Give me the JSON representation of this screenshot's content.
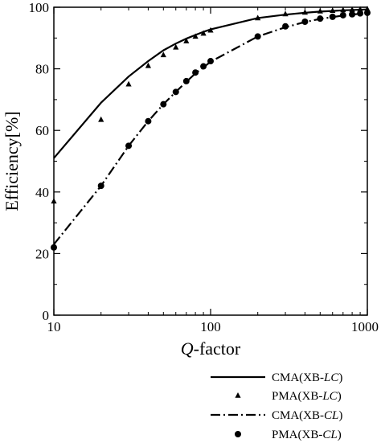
{
  "chart_data": {
    "type": "scatter",
    "xlabel_italic": "Q",
    "xlabel_rest": "-factor",
    "ylabel": "Efficiency[%]",
    "x_scale": "log",
    "xlim": [
      10,
      1000
    ],
    "ylim": [
      0,
      100
    ],
    "x_ticks": [
      10,
      100,
      1000
    ],
    "x_tick_labels": [
      "10",
      "100",
      "1000"
    ],
    "y_ticks": [
      0,
      20,
      40,
      60,
      80,
      100
    ],
    "y_tick_labels": [
      "0",
      "20",
      "40",
      "60",
      "80",
      "100"
    ],
    "grid": false,
    "legend_position": "below-right",
    "series": [
      {
        "legend_prefix": "CMA(XB-",
        "legend_italic": "LC",
        "legend_suffix": ")",
        "style": "solid-line",
        "x": [
          10,
          20,
          30,
          40,
          50,
          60,
          70,
          80,
          90,
          100,
          200,
          300,
          400,
          500,
          600,
          700,
          800,
          900,
          1000
        ],
        "y": [
          51,
          69,
          77.5,
          82.5,
          86,
          88.2,
          89.8,
          91,
          92,
          92.8,
          96.5,
          97.6,
          98.2,
          98.6,
          98.8,
          99,
          99.1,
          99.2,
          99.3
        ]
      },
      {
        "legend_prefix": "PMA(XB-",
        "legend_italic": "LC",
        "legend_suffix": ")",
        "style": "triangle-marker",
        "x": [
          10,
          20,
          30,
          40,
          50,
          60,
          70,
          80,
          90,
          100,
          200,
          300,
          400,
          500,
          600,
          700,
          800,
          900,
          1000
        ],
        "y": [
          37,
          63.5,
          75,
          81,
          84.5,
          87,
          89,
          90.5,
          91.5,
          92.5,
          96.5,
          97.8,
          98.3,
          98.7,
          98.9,
          99.1,
          99.2,
          99.3,
          99.4
        ]
      },
      {
        "legend_prefix": "CMA(XB-",
        "legend_italic": "CL",
        "legend_suffix": ")",
        "style": "dash-dot-line",
        "x": [
          10,
          20,
          30,
          40,
          50,
          60,
          70,
          80,
          90,
          100,
          200,
          300,
          400,
          500,
          600,
          700,
          800,
          900,
          1000
        ],
        "y": [
          23,
          42,
          55,
          63,
          68.5,
          72.5,
          75.8,
          78.5,
          80.5,
          82.3,
          90.5,
          93.5,
          95.2,
          96.2,
          96.8,
          97.3,
          97.6,
          97.9,
          98.1
        ]
      },
      {
        "legend_prefix": "PMA(XB-",
        "legend_italic": "CL",
        "legend_suffix": ")",
        "style": "circle-marker",
        "x": [
          10,
          20,
          30,
          40,
          50,
          60,
          70,
          80,
          90,
          100,
          200,
          300,
          400,
          500,
          600,
          700,
          800,
          900,
          1000
        ],
        "y": [
          22,
          42,
          55,
          63,
          68.5,
          72.5,
          76,
          78.8,
          80.8,
          82.5,
          90.5,
          93.8,
          95.3,
          96.3,
          96.9,
          97.4,
          97.7,
          98,
          98.2
        ]
      }
    ]
  }
}
